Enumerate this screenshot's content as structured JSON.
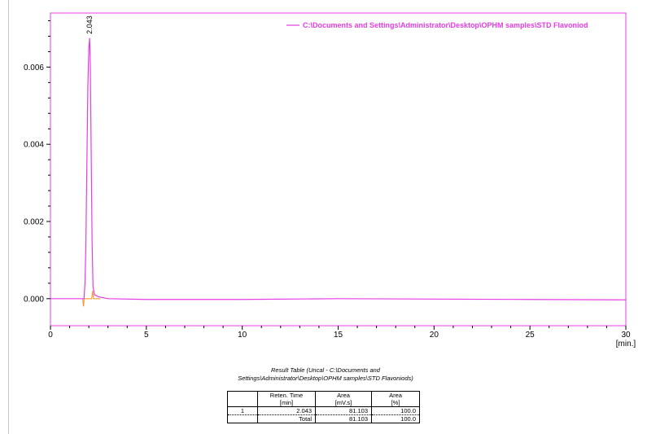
{
  "chart_data": {
    "type": "line",
    "xlabel": "[min.]",
    "ylabel": "",
    "xlim": [
      0,
      30
    ],
    "ylim": [
      -0.0007,
      0.0074
    ],
    "x_ticks": [
      "0",
      "5",
      "10",
      "15",
      "20",
      "25",
      "30"
    ],
    "y_ticks": [
      "0.000",
      "0.002",
      "0.004",
      "0.006"
    ],
    "grid": false,
    "legend_position": "top-right",
    "colors": {
      "trace": "#e63ce6",
      "secondary_trace": "#ff8c1a",
      "frame": "#e63ce6"
    },
    "series": [
      {
        "name": "C:\\Documents and Settings\\Administrator\\Desktop\\OPHM samples\\STD Flavoniod",
        "x": [
          0,
          1.5,
          1.75,
          1.8,
          1.85,
          1.9,
          1.95,
          2.0,
          2.043,
          2.08,
          2.12,
          2.17,
          2.22,
          2.3,
          2.5,
          3.0,
          5,
          10,
          15,
          20,
          25,
          30
        ],
        "y": [
          0.0,
          0.0,
          0.0,
          0.0004,
          0.0015,
          0.0035,
          0.0055,
          0.0065,
          0.00675,
          0.006,
          0.004,
          0.0015,
          0.0003,
          0.0001,
          5e-05,
          0.0,
          -2e-05,
          -2e-05,
          0.0,
          -1e-05,
          -2e-05,
          -3e-05
        ]
      }
    ],
    "peak_labels": [
      {
        "x": 2.043,
        "y": 0.00675,
        "text": "2.043"
      }
    ]
  },
  "result_table": {
    "title": "Result Table (Uncal - C:\\Documents and Settings\\Administrator\\Desktop\\OPHM samples\\STD Flavoniods)",
    "headers": [
      {
        "line1": "",
        "line2": ""
      },
      {
        "line1": "Reten. Time",
        "line2": "[min]"
      },
      {
        "line1": "Area",
        "line2": "[mV.s]"
      },
      {
        "line1": "Area",
        "line2": "[%]"
      }
    ],
    "rows": [
      {
        "no": "1",
        "time": "2.043",
        "area": "81.103",
        "pct": "100.0"
      },
      {
        "no": "",
        "time": "Total",
        "area": "81.103",
        "pct": "100.0"
      }
    ]
  }
}
